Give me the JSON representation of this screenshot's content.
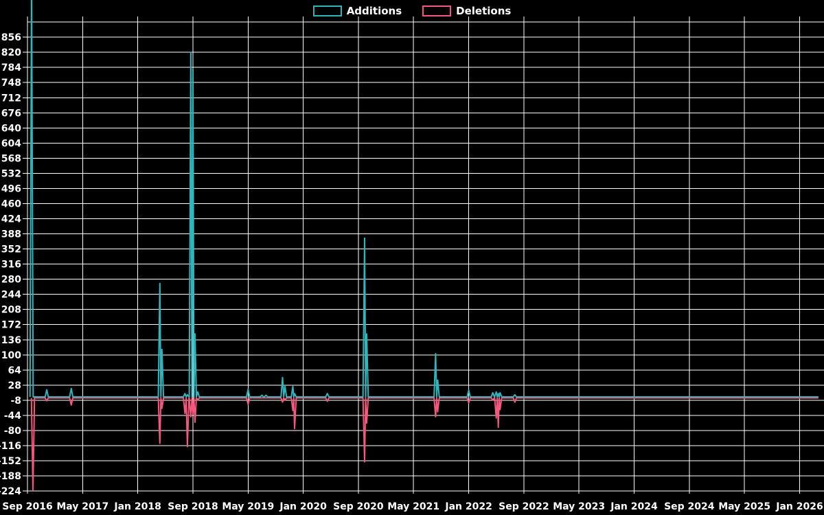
{
  "legend": {
    "additions_label": "Additions",
    "deletions_label": "Deletions"
  },
  "colors": {
    "background": "#000000",
    "grid": "#ffffff",
    "text": "#ffffff",
    "additions": "#31b5bd",
    "deletions": "#f4587e"
  },
  "y_axis": {
    "ticks": [
      856,
      820,
      784,
      748,
      712,
      676,
      640,
      604,
      568,
      532,
      496,
      460,
      424,
      388,
      352,
      316,
      280,
      244,
      208,
      172,
      136,
      100,
      64,
      28,
      -8,
      -44,
      -80,
      -116,
      -152,
      -188,
      -224
    ],
    "unlabeled_gridlines": [
      892
    ],
    "tick_step": 36
  },
  "x_axis": {
    "labels": [
      "Sep 2016",
      "May 2017",
      "Jan 2018",
      "Sep 2018",
      "May 2019",
      "Jan 2020",
      "Sep 2020",
      "May 2021",
      "Jan 2022",
      "Sep 2022",
      "May 2023",
      "Jan 2024",
      "Sep 2024",
      "May 2025",
      "Jan 2026"
    ],
    "months_between_labels": 8
  },
  "chart_data": {
    "type": "line",
    "title": "",
    "xlabel": "",
    "ylabel": "",
    "x_unit": "months since Sep 2016",
    "ylim_gridlines": [
      -224,
      892
    ],
    "grid": true,
    "legend_position": "top-center",
    "notes": "Spiky commit-activity style chart; additions plotted above zero, deletions below. First additions spike (Sep 2016) exceeds the visible axis and is clipped at the top of the plot. Both series sit flat at 0 from Aug 2022 to Feb 2026.",
    "series": [
      {
        "name": "Additions",
        "color_key": "additions",
        "offscale_top_first_point": true,
        "points": [
          {
            "date": "Sep 2016",
            "m": 0.6,
            "v": 1000
          },
          {
            "date": "Nov 2016",
            "m": 2.8,
            "v": 17
          },
          {
            "date": "Mar 2017",
            "m": 6.35,
            "v": 20
          },
          {
            "date": "Apr 2018",
            "m": 19.2,
            "v": 270
          },
          {
            "date": "Apr 2018",
            "m": 19.5,
            "v": 113
          },
          {
            "date": "Jul 2018",
            "m": 22.85,
            "v": 8
          },
          {
            "date": "Aug 2018",
            "m": 23.2,
            "v": 5
          },
          {
            "date": "Sep 2018",
            "m": 23.7,
            "v": 820
          },
          {
            "date": "Sep 2018",
            "m": 24.0,
            "v": 780
          },
          {
            "date": "Sep 2018",
            "m": 24.3,
            "v": 150
          },
          {
            "date": "Oct 2018",
            "m": 24.7,
            "v": 12
          },
          {
            "date": "May 2019",
            "m": 32.0,
            "v": 18
          },
          {
            "date": "Jul 2019",
            "m": 34.0,
            "v": 4
          },
          {
            "date": "Jul 2019",
            "m": 34.6,
            "v": 4
          },
          {
            "date": "Oct 2019",
            "m": 37.0,
            "v": 46
          },
          {
            "date": "Oct 2019",
            "m": 37.35,
            "v": 25
          },
          {
            "date": "Nov 2019",
            "m": 38.5,
            "v": 25
          },
          {
            "date": "Dec 2019",
            "m": 38.75,
            "v": 8
          },
          {
            "date": "Apr 2020",
            "m": 43.5,
            "v": 8
          },
          {
            "date": "Oct 2020",
            "m": 48.9,
            "v": 378
          },
          {
            "date": "Oct 2020",
            "m": 49.2,
            "v": 150
          },
          {
            "date": "Aug 2021",
            "m": 59.2,
            "v": 103
          },
          {
            "date": "Aug 2021",
            "m": 59.5,
            "v": 40
          },
          {
            "date": "Jan 2022",
            "m": 64.0,
            "v": 16
          },
          {
            "date": "Apr 2022",
            "m": 67.5,
            "v": 10
          },
          {
            "date": "May 2022",
            "m": 68.0,
            "v": 12
          },
          {
            "date": "May 2022",
            "m": 68.3,
            "v": 8
          },
          {
            "date": "May 2022",
            "m": 68.55,
            "v": 10
          },
          {
            "date": "Jul 2022",
            "m": 70.7,
            "v": 5
          },
          {
            "date": "Feb 2026",
            "m": 114.5,
            "v": 0
          }
        ]
      },
      {
        "name": "Deletions",
        "color_key": "deletions",
        "points": [
          {
            "date": "Sep 2016",
            "m": 0.8,
            "v": -220
          },
          {
            "date": "Nov 2016",
            "m": 2.8,
            "v": -7
          },
          {
            "date": "Mar 2017",
            "m": 6.35,
            "v": -17
          },
          {
            "date": "Apr 2018",
            "m": 19.2,
            "v": -108
          },
          {
            "date": "Apr 2018",
            "m": 19.5,
            "v": -25
          },
          {
            "date": "Jul 2018",
            "m": 22.85,
            "v": -37
          },
          {
            "date": "Aug 2018",
            "m": 23.2,
            "v": -116
          },
          {
            "date": "Sep 2018",
            "m": 23.7,
            "v": -45
          },
          {
            "date": "Sep 2018",
            "m": 24.0,
            "v": -40
          },
          {
            "date": "Sep 2018",
            "m": 24.3,
            "v": -58
          },
          {
            "date": "Oct 2018",
            "m": 24.7,
            "v": -5
          },
          {
            "date": "May 2019",
            "m": 32.0,
            "v": -15
          },
          {
            "date": "Jul 2019",
            "m": 34.0,
            "v": 0
          },
          {
            "date": "Jul 2019",
            "m": 34.6,
            "v": 0
          },
          {
            "date": "Oct 2019",
            "m": 37.0,
            "v": -10
          },
          {
            "date": "Oct 2019",
            "m": 37.35,
            "v": -5
          },
          {
            "date": "Nov 2019",
            "m": 38.5,
            "v": -30
          },
          {
            "date": "Dec 2019",
            "m": 38.75,
            "v": -73
          },
          {
            "date": "Apr 2020",
            "m": 43.5,
            "v": -8
          },
          {
            "date": "Oct 2020",
            "m": 48.9,
            "v": -152
          },
          {
            "date": "Oct 2020",
            "m": 49.2,
            "v": -60
          },
          {
            "date": "Aug 2021",
            "m": 59.2,
            "v": -45
          },
          {
            "date": "Aug 2021",
            "m": 59.5,
            "v": -33
          },
          {
            "date": "Jan 2022",
            "m": 64.0,
            "v": -12
          },
          {
            "date": "Apr 2022",
            "m": 67.5,
            "v": -5
          },
          {
            "date": "May 2022",
            "m": 68.0,
            "v": -48
          },
          {
            "date": "May 2022",
            "m": 68.3,
            "v": -70
          },
          {
            "date": "May 2022",
            "m": 68.55,
            "v": -28
          },
          {
            "date": "Jul 2022",
            "m": 70.7,
            "v": -10
          },
          {
            "date": "Feb 2026",
            "m": 114.5,
            "v": 0
          }
        ]
      }
    ]
  }
}
